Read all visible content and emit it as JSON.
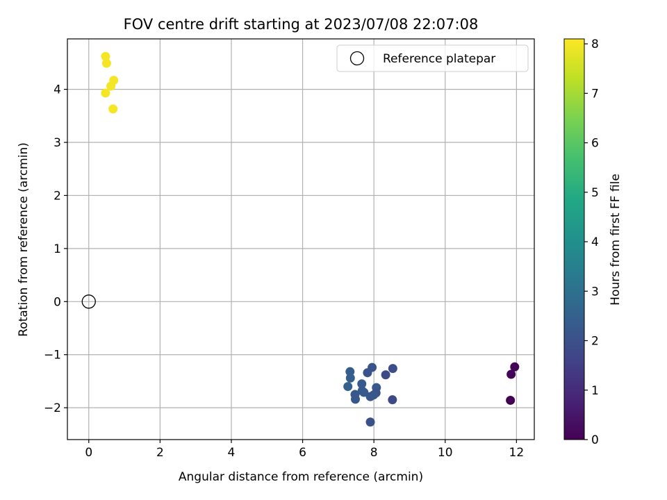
{
  "chart_data": {
    "type": "scatter",
    "title": "FOV centre drift starting at 2023/07/08 22:07:08",
    "xlabel": "Angular distance from reference (arcmin)",
    "ylabel": "Rotation from reference (arcmin)",
    "xlim": [
      -0.6,
      12.5
    ],
    "ylim": [
      -2.6,
      4.95
    ],
    "xticks": [
      0,
      2,
      4,
      6,
      8,
      10,
      12
    ],
    "yticks": [
      -2,
      -1,
      0,
      1,
      2,
      3,
      4
    ],
    "grid": true,
    "legend": {
      "position": "top-right",
      "entries": [
        "Reference platepar"
      ]
    },
    "reference_point": {
      "x": 0,
      "y": 0
    },
    "colorbar": {
      "label": "Hours from first FF file",
      "range": [
        0,
        8.1
      ],
      "ticks": [
        0,
        1,
        2,
        3,
        4,
        5,
        6,
        7,
        8
      ],
      "colormap": "viridis"
    },
    "points": [
      {
        "x": 0.47,
        "y": 4.62,
        "t": 8.0
      },
      {
        "x": 0.5,
        "y": 4.49,
        "t": 8.0
      },
      {
        "x": 0.7,
        "y": 4.17,
        "t": 8.0
      },
      {
        "x": 0.62,
        "y": 4.06,
        "t": 8.0
      },
      {
        "x": 0.47,
        "y": 3.93,
        "t": 8.0
      },
      {
        "x": 0.68,
        "y": 3.63,
        "t": 8.0
      },
      {
        "x": 11.95,
        "y": -1.23,
        "t": 0.1
      },
      {
        "x": 11.85,
        "y": -1.37,
        "t": 0.1
      },
      {
        "x": 11.83,
        "y": -1.86,
        "t": 0.0
      },
      {
        "x": 8.53,
        "y": -1.26,
        "t": 1.9
      },
      {
        "x": 8.33,
        "y": -1.38,
        "t": 1.8
      },
      {
        "x": 8.52,
        "y": -1.85,
        "t": 1.8
      },
      {
        "x": 7.95,
        "y": -1.24,
        "t": 2.1
      },
      {
        "x": 7.82,
        "y": -1.34,
        "t": 2.1
      },
      {
        "x": 7.33,
        "y": -1.32,
        "t": 2.4
      },
      {
        "x": 7.34,
        "y": -1.44,
        "t": 2.4
      },
      {
        "x": 7.27,
        "y": -1.6,
        "t": 2.5
      },
      {
        "x": 7.66,
        "y": -1.55,
        "t": 2.3
      },
      {
        "x": 7.67,
        "y": -1.68,
        "t": 2.3
      },
      {
        "x": 7.47,
        "y": -1.75,
        "t": 2.2
      },
      {
        "x": 7.48,
        "y": -1.84,
        "t": 2.2
      },
      {
        "x": 7.72,
        "y": -1.71,
        "t": 2.3
      },
      {
        "x": 7.9,
        "y": -1.79,
        "t": 2.2
      },
      {
        "x": 8.07,
        "y": -1.62,
        "t": 2.2
      },
      {
        "x": 8.06,
        "y": -1.72,
        "t": 2.1
      },
      {
        "x": 7.99,
        "y": -1.76,
        "t": 2.2
      },
      {
        "x": 7.9,
        "y": -2.27,
        "t": 2.0
      }
    ]
  }
}
